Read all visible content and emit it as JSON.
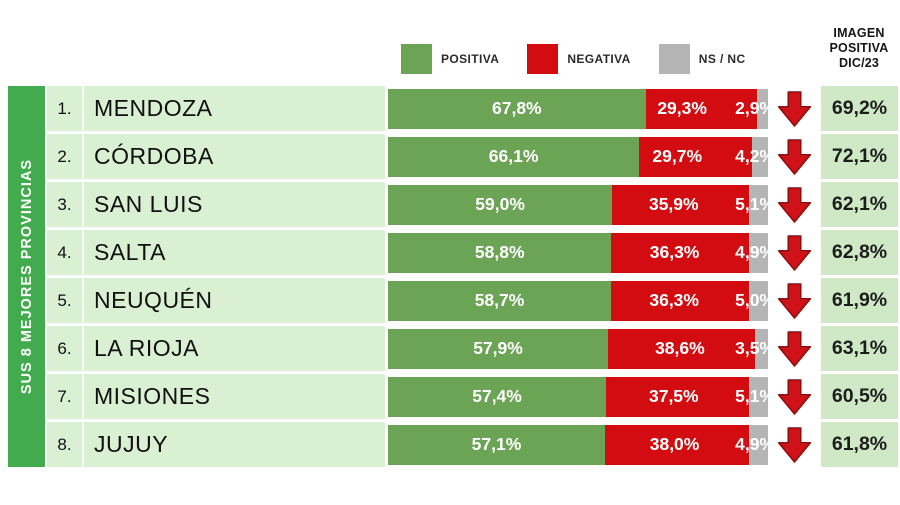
{
  "legend": {
    "items": [
      {
        "name": "positiva",
        "label": "POSITIVA",
        "color": "#6ba455"
      },
      {
        "name": "negativa",
        "label": "NEGATIVA",
        "color": "#d20c11"
      },
      {
        "name": "nsnc",
        "label": "NS / NC",
        "color": "#b5b5b5"
      }
    ]
  },
  "right_header": {
    "line1": "IMAGEN",
    "line2": "POSITIVA",
    "line3": "DIC/23"
  },
  "sidebar": {
    "label": "SUS 8 MEJORES PROVINCIAS"
  },
  "colors": {
    "bar_positive": "#6ba455",
    "bar_negative": "#d20c11",
    "bar_nsnc": "#b5b5b5",
    "cell_bg": "#d9f0d2",
    "dic_cell_bg": "#cfe8c5",
    "sidebar_bg": "#42ab4d",
    "arrow_fill": "#cf1217",
    "arrow_stroke": "#8e0f0f"
  },
  "chart_data": {
    "type": "bar",
    "orientation": "horizontal-stacked",
    "title": "SUS 8 MEJORES PROVINCIAS",
    "categories": [
      "MENDOZA",
      "CÓRDOBA",
      "SAN LUIS",
      "SALTA",
      "NEUQUÉN",
      "LA RIOJA",
      "MISIONES",
      "JUJUY"
    ],
    "ranks": [
      "1.",
      "2.",
      "3.",
      "4.",
      "5.",
      "6.",
      "7.",
      "8."
    ],
    "series": [
      {
        "name": "POSITIVA",
        "color": "#6ba455",
        "values": [
          67.8,
          66.1,
          59.0,
          58.8,
          58.7,
          57.9,
          57.4,
          57.1
        ],
        "labels": [
          "67,8%",
          "66,1%",
          "59,0%",
          "58,8%",
          "58,7%",
          "57,9%",
          "57,4%",
          "57,1%"
        ]
      },
      {
        "name": "NEGATIVA",
        "color": "#d20c11",
        "values": [
          29.3,
          29.7,
          35.9,
          36.3,
          36.3,
          38.6,
          37.5,
          38.0
        ],
        "labels": [
          "29,3%",
          "29,7%",
          "35,9%",
          "36,3%",
          "36,3%",
          "38,6%",
          "37,5%",
          "38,0%"
        ]
      },
      {
        "name": "NS / NC",
        "color": "#b5b5b5",
        "values": [
          2.9,
          4.2,
          5.1,
          4.9,
          5.0,
          3.5,
          5.1,
          4.9
        ],
        "labels": [
          "2,9%",
          "4,2%",
          "5,1%",
          "4,9%",
          "5,0%",
          "3,5%",
          "5,1%",
          "4,9%"
        ]
      }
    ],
    "xlim": [
      0,
      100
    ],
    "legend_position": "top",
    "grid": false,
    "extra_column": {
      "header": "IMAGEN POSITIVA DIC/23",
      "values": [
        69.2,
        72.1,
        62.1,
        62.8,
        61.9,
        63.1,
        60.5,
        61.8
      ],
      "labels": [
        "69,2%",
        "72,1%",
        "62,1%",
        "62,8%",
        "61,9%",
        "63,1%",
        "60,5%",
        "61,8%"
      ]
    },
    "trend_indicator": "red-down-arrow-per-row"
  }
}
